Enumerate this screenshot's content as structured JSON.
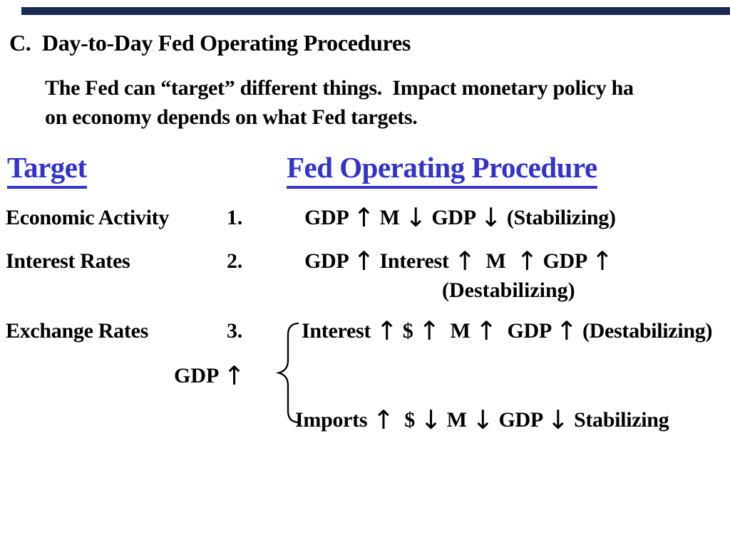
{
  "colors": {
    "top_bar": "#1c2a52",
    "accent_blue": "#3333cc",
    "text": "#000000",
    "background": "#ffffff"
  },
  "heading": "C.  Day-to-Day Fed Operating Procedures",
  "intro": {
    "line1": "The Fed can “target” different things.  Impact monetary policy ha",
    "line2": "on economy depends on what Fed targets."
  },
  "table": {
    "col1_header": "Target",
    "col2_header": "Fed Operating Procedure",
    "rows": [
      {
        "target": "Economic Activity",
        "num": "1.",
        "proc": "GDP ↑ M ↓ GDP ↓ (Stabilizing)"
      },
      {
        "target": "Interest Rates",
        "num": "2.",
        "proc": "GDP ↑ Interest ↑  M  ↑ GDP ↑"
      },
      {
        "target": "Exchange Rates",
        "num": "3.",
        "proc": "Interest ↑ $ ↑  M ↑  GDP ↑ (Destabilizing)"
      }
    ],
    "row2_wrap": "(Destabilizing)",
    "gdp_note": "GDP ↑",
    "imports_line": "Imports ↑  $ ↓ M ↓ GDP ↓ Stabilizing"
  }
}
